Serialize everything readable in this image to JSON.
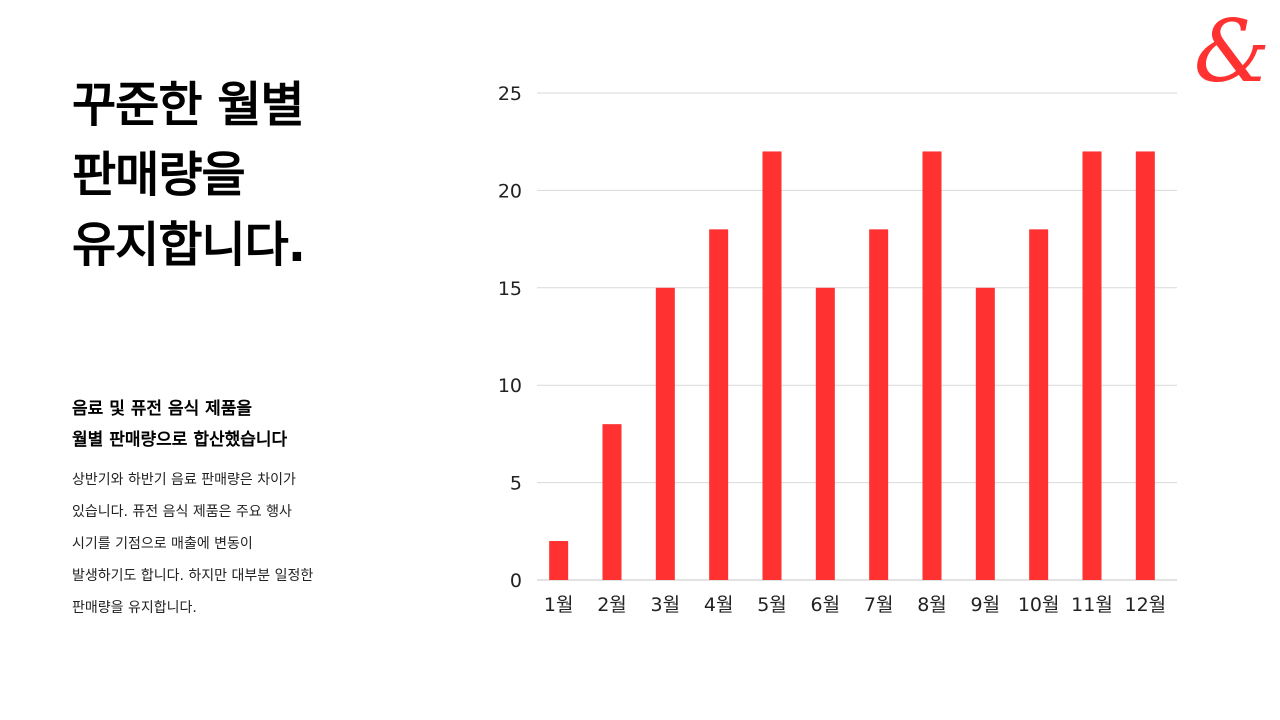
{
  "logo": {
    "glyph": "&",
    "color": "#ff3131"
  },
  "title": {
    "lines": [
      "꾸준한 월별",
      "판매량을",
      "유지합니다."
    ]
  },
  "subheading": {
    "lines": [
      "음료 및 퓨전 음식 제품을",
      "월별 판매량으로 합산했습니다"
    ]
  },
  "body": {
    "lines": [
      "상반기와 하반기 음료 판매량은 차이가",
      "있습니다. 퓨전 음식 제품은 주요 행사",
      "시기를 기점으로 매출에 변동이",
      "발생하기도 합니다. 하지만 대부분 일정한",
      "판매량을 유지합니다."
    ]
  },
  "chart_data": {
    "type": "bar",
    "categories": [
      "1월",
      "2월",
      "3월",
      "4월",
      "5월",
      "6월",
      "7월",
      "8월",
      "9월",
      "10월",
      "11월",
      "12월"
    ],
    "values": [
      2,
      8,
      15,
      18,
      22,
      15,
      18,
      22,
      15,
      18,
      22,
      22
    ],
    "ylim": [
      0,
      25
    ],
    "yticks": [
      0,
      5,
      10,
      15,
      20,
      25
    ],
    "grid": true,
    "legend": "none",
    "bar_color": "#ff3131",
    "grid_color": "#d9d9d9"
  }
}
